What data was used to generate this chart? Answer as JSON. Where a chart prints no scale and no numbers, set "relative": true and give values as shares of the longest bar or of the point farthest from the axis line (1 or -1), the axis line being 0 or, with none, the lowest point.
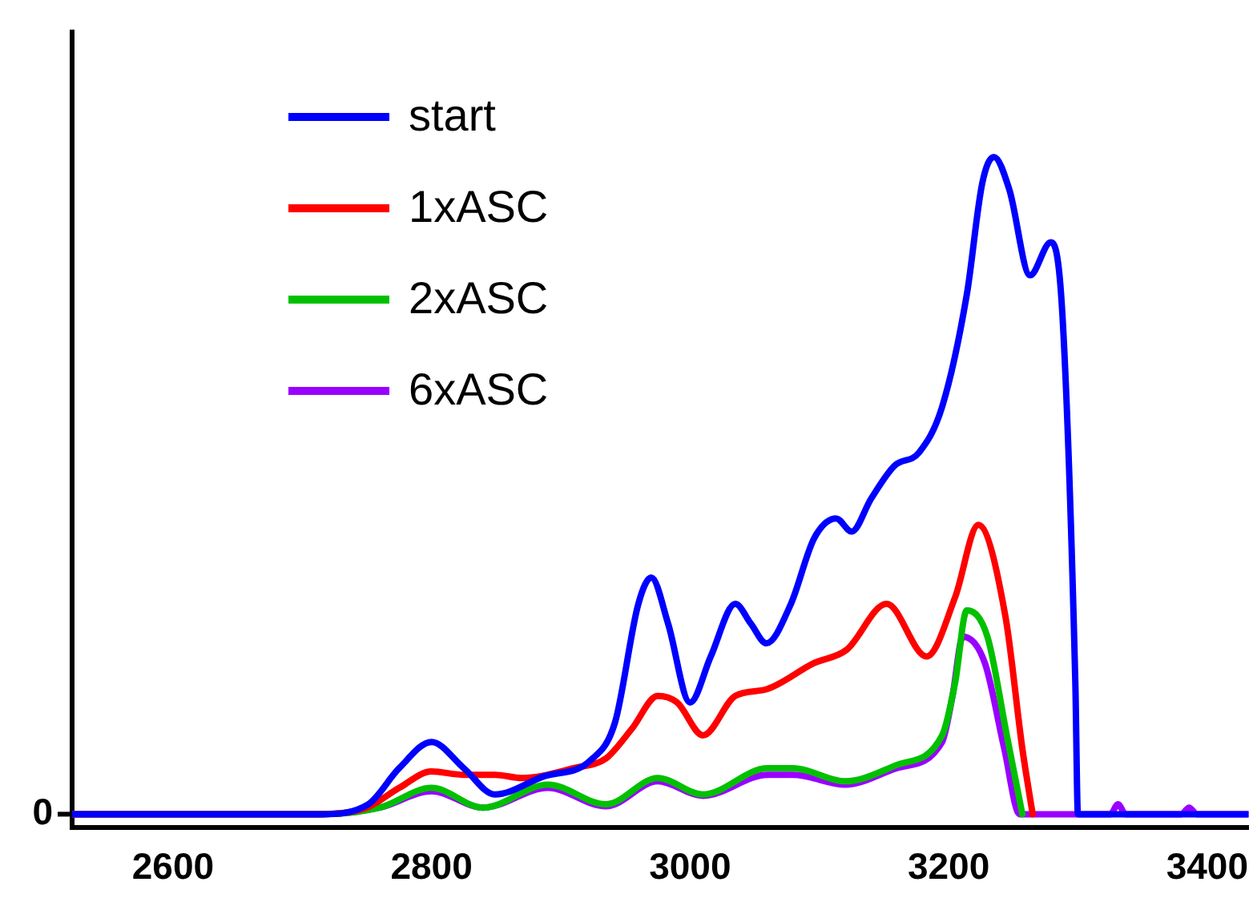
{
  "chart_data": {
    "type": "line",
    "relative": true,
    "xlim": [
      2522,
      3432
    ],
    "xticks": [
      2600,
      2800,
      3000,
      3200,
      3400
    ],
    "annotations": [
      "0"
    ],
    "legend": "top left",
    "grid": false,
    "marker": "none",
    "line_style": "solid",
    "series": [
      {
        "name": "start",
        "color": "#0000ff",
        "x": [
          2522,
          2714,
          2751,
          2775,
          2800,
          2825,
          2849,
          2886,
          2923,
          2942,
          2960,
          2970,
          2983,
          3000,
          3016,
          3035,
          3047,
          3059,
          3078,
          3096,
          3113,
          3125,
          3140,
          3158,
          3177,
          3195,
          3214,
          3226,
          3235,
          3247,
          3263,
          3279,
          3288,
          3298,
          3300,
          3432
        ],
        "values": [
          0,
          0,
          0.015,
          0.07,
          0.11,
          0.07,
          0.03,
          0.057,
          0.082,
          0.14,
          0.32,
          0.36,
          0.29,
          0.17,
          0.24,
          0.32,
          0.29,
          0.26,
          0.32,
          0.42,
          0.45,
          0.43,
          0.48,
          0.53,
          0.55,
          0.62,
          0.79,
          0.96,
          1.0,
          0.95,
          0.82,
          0.87,
          0.76,
          0.2,
          0,
          0
        ]
      },
      {
        "name": "1xASC",
        "color": "#ff0000",
        "x": [
          2522,
          2714,
          2750,
          2775,
          2800,
          2825,
          2849,
          2870,
          2910,
          2935,
          2955,
          2975,
          2990,
          3010,
          3035,
          3059,
          3096,
          3121,
          3152,
          3183,
          3205,
          3223,
          3244,
          3257,
          3265
        ],
        "values": [
          0,
          0,
          0.01,
          0.04,
          0.065,
          0.06,
          0.06,
          0.055,
          0.07,
          0.085,
          0.13,
          0.18,
          0.17,
          0.12,
          0.18,
          0.19,
          0.23,
          0.25,
          0.32,
          0.24,
          0.33,
          0.44,
          0.3,
          0.1,
          0
        ]
      },
      {
        "name": "2xASC",
        "color": "#00c000",
        "x": [
          2522,
          2714,
          2760,
          2800,
          2840,
          2890,
          2935,
          2975,
          3010,
          3060,
          3080,
          3120,
          3160,
          3195,
          3205,
          3214,
          3230,
          3245,
          3257
        ],
        "values": [
          0,
          0,
          0.01,
          0.04,
          0.01,
          0.045,
          0.015,
          0.055,
          0.03,
          0.07,
          0.07,
          0.05,
          0.075,
          0.12,
          0.2,
          0.31,
          0.27,
          0.12,
          0
        ]
      },
      {
        "name": "6xASC",
        "color": "#9900ff",
        "x": [
          2522,
          2714,
          2760,
          2800,
          2840,
          2890,
          2935,
          2975,
          3010,
          3060,
          3080,
          3120,
          3160,
          3195,
          3203,
          3211,
          3228,
          3243,
          3255,
          3325,
          3331,
          3337,
          3380,
          3386,
          3392,
          3432
        ],
        "values": [
          0,
          0,
          0.01,
          0.035,
          0.01,
          0.04,
          0.012,
          0.05,
          0.028,
          0.06,
          0.06,
          0.045,
          0.07,
          0.11,
          0.18,
          0.27,
          0.23,
          0.1,
          0,
          0,
          0.015,
          0,
          0,
          0.01,
          0,
          0
        ]
      }
    ]
  }
}
